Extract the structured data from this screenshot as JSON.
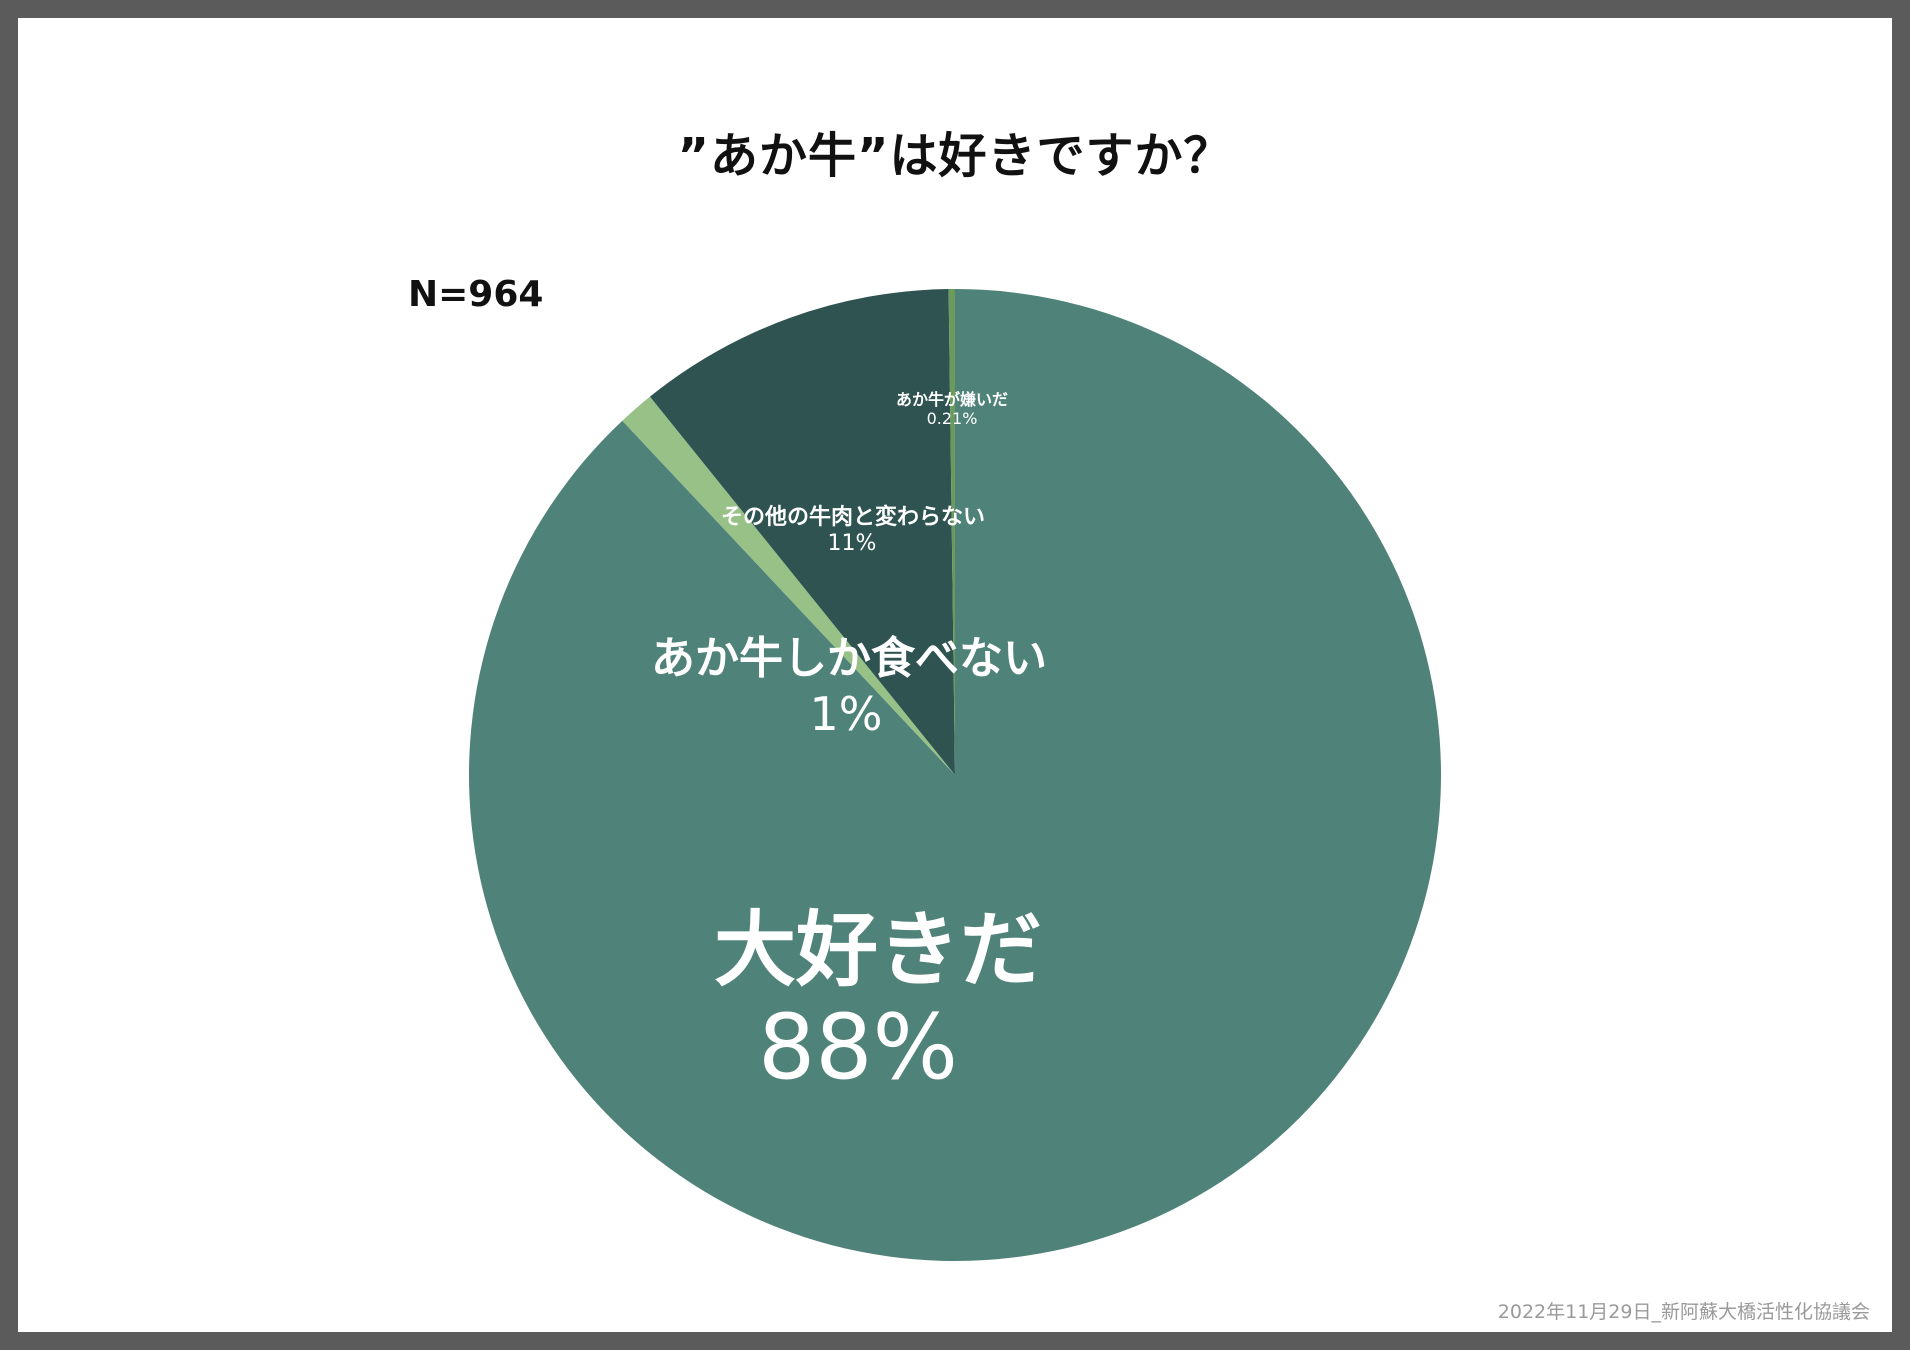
{
  "title": "”あか牛”は好きですか？",
  "sample_size": "N=964",
  "footer": "2022年11月29日_新阿蘇大橋活性化協議会",
  "chart_data": {
    "type": "pie",
    "title": "”あか牛”は好きですか？",
    "start": "12 o'clock",
    "direction": "clockwise",
    "slices": [
      {
        "label": "大好きだ",
        "value": 88,
        "value_label": "88%",
        "color": "#4f8278"
      },
      {
        "label": "あか牛しか食べない",
        "value": 1.2,
        "value_label": "1%",
        "color": "#97c187"
      },
      {
        "label": "その他の牛肉と変わらない",
        "value": 10.59,
        "value_label": "11%",
        "color": "#2e5351"
      },
      {
        "label": "あか牛が嫌いだ",
        "value": 0.21,
        "value_label": "0.21%",
        "color": "#6a9b5c"
      }
    ]
  }
}
